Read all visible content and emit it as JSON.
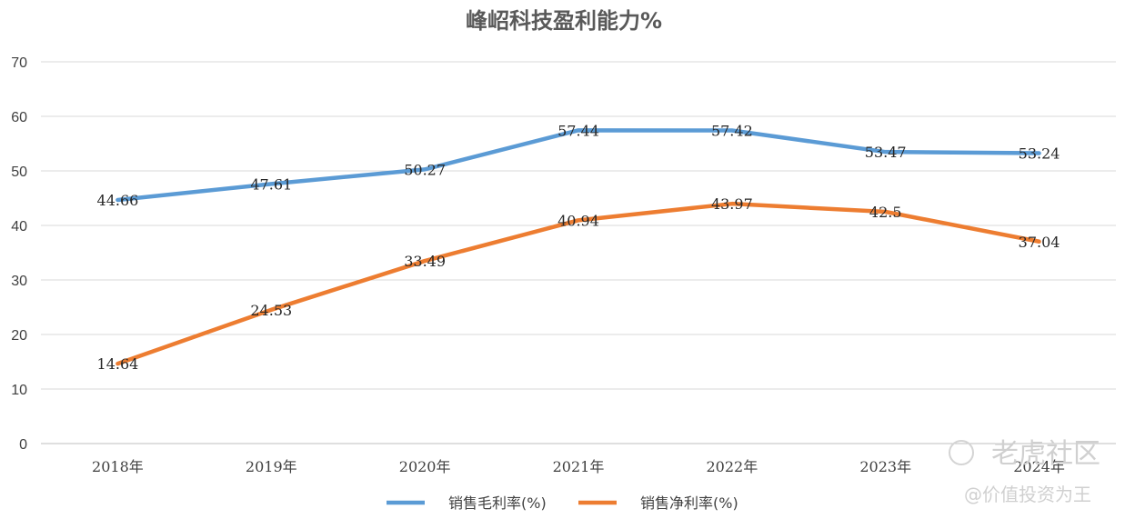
{
  "chart_data": {
    "type": "line",
    "title": "峰岹科技盈利能力%",
    "categories": [
      "2018年",
      "2019年",
      "2020年",
      "2021年",
      "2022年",
      "2023年",
      "2024年"
    ],
    "ylim": [
      0,
      70
    ],
    "yticks": [
      0,
      10,
      20,
      30,
      40,
      50,
      60,
      70
    ],
    "grid": true,
    "legend_position": "bottom",
    "series": [
      {
        "name": "销售毛利率(%)",
        "color": "#5b9bd5",
        "values": [
          44.66,
          47.61,
          50.27,
          57.44,
          57.42,
          53.47,
          53.24
        ],
        "labels": [
          "44.66",
          "47.61",
          "50.27",
          "57.44",
          "57.42",
          "53.47",
          "53.24"
        ]
      },
      {
        "name": "销售净利率(%)",
        "color": "#ed7d31",
        "values": [
          14.64,
          24.53,
          33.49,
          40.94,
          43.97,
          42.5,
          37.04
        ],
        "labels": [
          "14.64",
          "24.53",
          "33.49",
          "40.94",
          "43.97",
          "42.5",
          "37.04"
        ]
      }
    ]
  },
  "watermark": {
    "line1": "老虎社区",
    "line2": "@价值投资为王"
  }
}
